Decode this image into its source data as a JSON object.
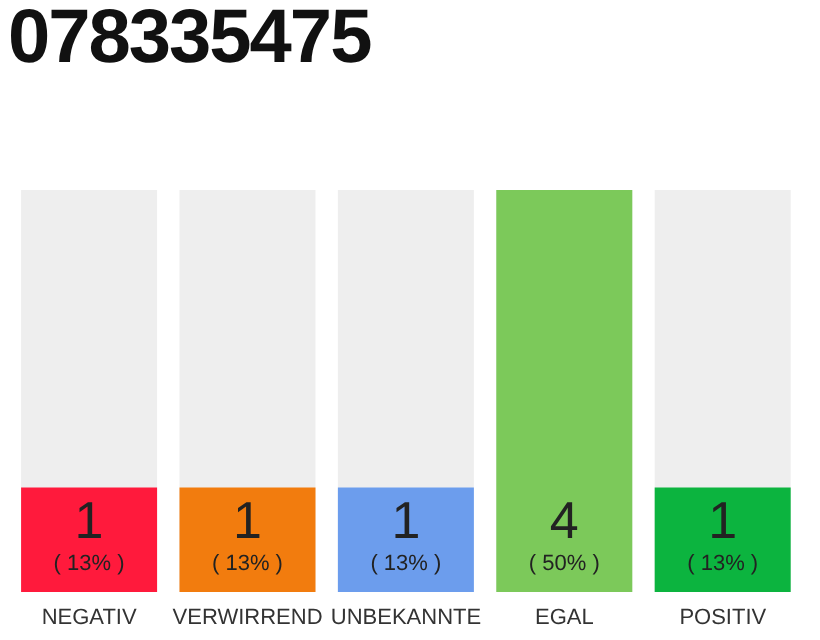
{
  "chart_data": {
    "type": "bar",
    "title": "078335475",
    "categories": [
      "NEGATIV",
      "VERWIRREND",
      "UNBEKANNTE",
      "EGAL",
      "POSITIV"
    ],
    "values": [
      13,
      13,
      13,
      50,
      13
    ],
    "colors": [
      "#ff1a3c",
      "#f27c0e",
      "#6c9ded",
      "#7cc95a",
      "#0cb43f"
    ],
    "value_labels": [
      "( 13% )",
      "( 13% )",
      "( 13% )",
      "( 50% )",
      "( 13% )"
    ],
    "annotations": [
      "1",
      "1",
      "1",
      "4",
      "1"
    ]
  }
}
